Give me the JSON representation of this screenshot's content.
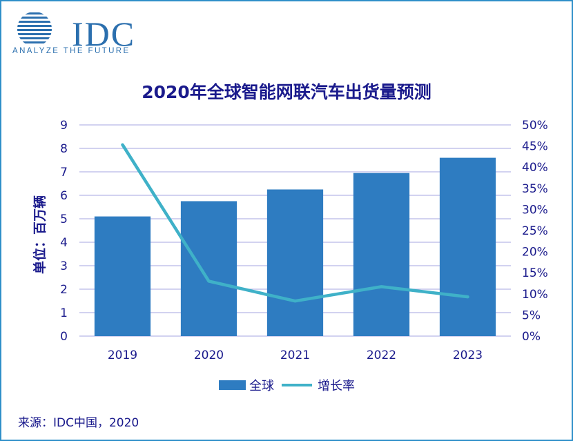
{
  "logo": {
    "text": "IDC",
    "tagline": "ANALYZE THE FUTURE"
  },
  "source": "来源：IDC中国，2020",
  "colors": {
    "bar": "#2e7cc1",
    "line": "#3fb1c8",
    "text": "#1a1a8c",
    "grid": "#b8b8e6",
    "border": "#2f8fc9"
  },
  "chart_data": {
    "type": "bar",
    "title": "2020年全球智能网联汽车出货量预测",
    "ylabel": "单位：百万辆",
    "ylim": [
      0,
      9
    ],
    "y_ticks": [
      "0",
      "1",
      "2",
      "3",
      "4",
      "5",
      "6",
      "7",
      "8",
      "9"
    ],
    "y2lim": [
      0,
      50
    ],
    "y2_ticks": [
      "0%",
      "5%",
      "10%",
      "15%",
      "20%",
      "25%",
      "30%",
      "35%",
      "40%",
      "45%",
      "50%"
    ],
    "categories": [
      "2019",
      "2020",
      "2021",
      "2022",
      "2023"
    ],
    "grid": true,
    "legend_position": "bottom",
    "series": [
      {
        "name": "全球",
        "type": "bar",
        "axis": "left",
        "values": [
          5.1,
          5.75,
          6.25,
          6.95,
          7.6
        ]
      },
      {
        "name": "增长率",
        "type": "line",
        "axis": "right",
        "values": [
          45.3,
          13.0,
          8.3,
          11.7,
          9.3
        ]
      }
    ]
  }
}
